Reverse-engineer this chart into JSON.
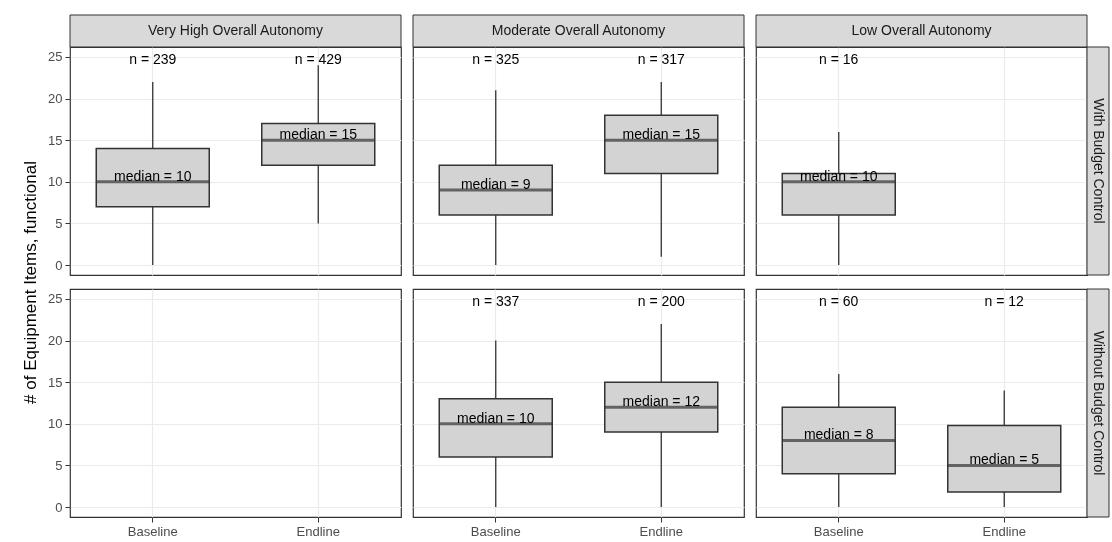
{
  "chart_data": [
    {
      "type": "box",
      "title": "Very High Overall Autonomy",
      "ylabel": "# of Equipment Items, functional",
      "categories": [
        "Baseline",
        "Endline"
      ],
      "ylim": [
        -1.2,
        26.2
      ],
      "yticks": [
        0,
        5,
        10,
        15,
        20,
        25
      ],
      "grid": true,
      "tick_labels": "y",
      "series": [
        {
          "color": "#d3d3d3",
          "boxes": [
            {
              "low": 0,
              "q1": 7,
              "median": 10,
              "q3": 14,
              "high": 22
            },
            {
              "low": 5,
              "q1": 12,
              "median": 15,
              "q3": 17,
              "high": 24
            }
          ]
        }
      ],
      "annotations": [
        "n = 239",
        "n = 429",
        {
          "text": "median = 10",
          "x": "Baseline",
          "y": 10
        },
        {
          "text": "median = 15",
          "x": "Endline",
          "y": 15
        }
      ]
    },
    {
      "type": "box",
      "title": "Moderate Overall Autonomy",
      "categories": [
        "Baseline",
        "Endline"
      ],
      "ylim": [
        -1.2,
        26.2
      ],
      "yticks": [
        0,
        5,
        10,
        15,
        20,
        25
      ],
      "grid": true,
      "tick_labels": false,
      "series": [
        {
          "color": "#d3d3d3",
          "boxes": [
            {
              "low": 0,
              "q1": 6,
              "median": 9,
              "q3": 12,
              "high": 21
            },
            {
              "low": 1,
              "q1": 11,
              "median": 15,
              "q3": 18,
              "high": 22
            }
          ]
        }
      ],
      "annotations": [
        "n = 325",
        "n = 317",
        {
          "text": "median = 9",
          "x": "Baseline",
          "y": 9
        },
        {
          "text": "median = 15",
          "x": "Endline",
          "y": 15
        }
      ]
    },
    {
      "type": "box",
      "title": "Low Overall Autonomy",
      "categories": [
        "Baseline",
        "Endline"
      ],
      "ylim": [
        -1.2,
        26.2
      ],
      "yticks": [
        0,
        5,
        10,
        15,
        20,
        25
      ],
      "grid": true,
      "tick_labels": false,
      "series": [
        {
          "color": "#d3d3d3",
          "boxes": [
            {
              "low": 0,
              "q1": 6,
              "median": 10,
              "q3": 11,
              "high": 16
            },
            null
          ]
        }
      ],
      "y2label": "With Budget Control",
      "annotations": [
        "n = 16",
        {
          "text": "median = 10",
          "x": "Baseline",
          "y": 10
        }
      ]
    },
    {
      "type": "box",
      "categories": [
        "Baseline",
        "Endline"
      ],
      "ylim": [
        -1.2,
        26.2
      ],
      "yticks": [
        0,
        5,
        10,
        15,
        20,
        25
      ],
      "grid": true,
      "series": [
        {
          "color": "#d3d3d3",
          "boxes": [
            null,
            null
          ]
        }
      ]
    },
    {
      "type": "box",
      "categories": [
        "Baseline",
        "Endline"
      ],
      "ylim": [
        -1.2,
        26.2
      ],
      "yticks": [
        0,
        5,
        10,
        15,
        20,
        25
      ],
      "grid": true,
      "tick_labels": "x",
      "series": [
        {
          "color": "#d3d3d3",
          "boxes": [
            {
              "low": 0,
              "q1": 6,
              "median": 10,
              "q3": 13,
              "high": 20
            },
            {
              "low": 0,
              "q1": 9,
              "median": 12,
              "q3": 15,
              "high": 22
            }
          ]
        }
      ],
      "annotations": [
        "n = 337",
        "n = 200",
        {
          "text": "median = 10",
          "x": "Baseline",
          "y": 10
        },
        {
          "text": "median = 12",
          "x": "Endline",
          "y": 12
        }
      ]
    },
    {
      "type": "box",
      "categories": [
        "Baseline",
        "Endline"
      ],
      "ylim": [
        -1.2,
        26.2
      ],
      "yticks": [
        0,
        5,
        10,
        15,
        20,
        25
      ],
      "grid": true,
      "tick_labels": "x",
      "series": [
        {
          "color": "#d3d3d3",
          "boxes": [
            {
              "low": 0,
              "q1": 4,
              "median": 8,
              "q3": 12,
              "high": 16
            },
            {
              "low": 0,
              "q1": 1.8,
              "median": 5,
              "q3": 9.8,
              "high": 14
            }
          ]
        }
      ],
      "y2label": "Without Budget Control",
      "annotations": [
        "n = 60",
        "n = 12",
        {
          "text": "median = 8",
          "x": "Baseline",
          "y": 8
        },
        {
          "text": "median = 5",
          "x": "Endline",
          "y": 5
        }
      ]
    }
  ]
}
